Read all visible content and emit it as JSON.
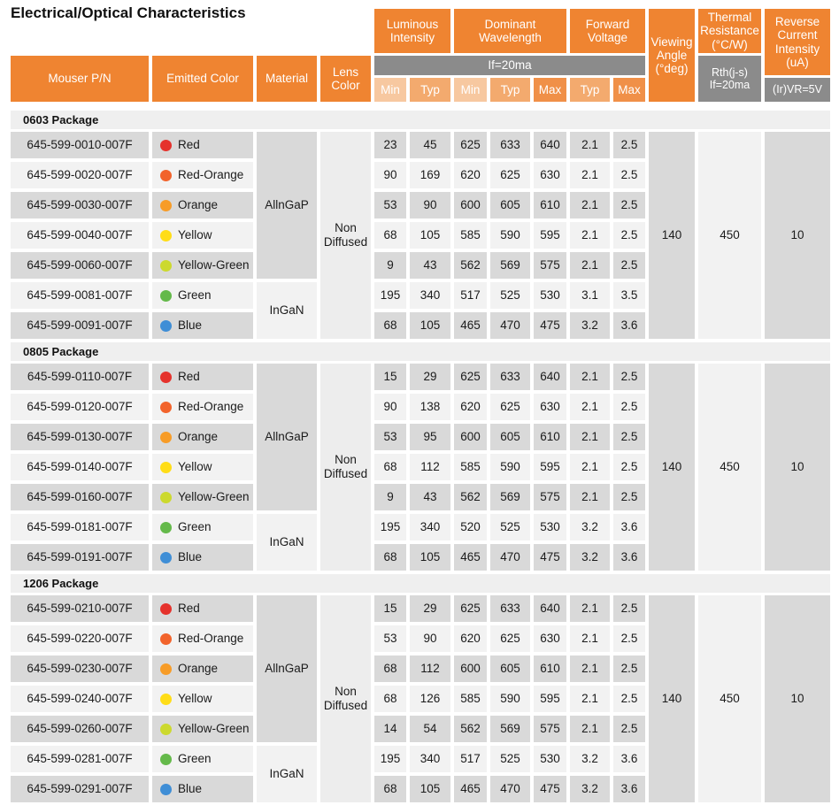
{
  "title": "Electrical/Optical Characteristics",
  "header": {
    "mouser_pn": "Mouser P/N",
    "emitted_color": "Emitted Color",
    "material": "Material",
    "lens_color": "Lens Color",
    "condition": "If=20ma",
    "groups": [
      {
        "label": "Luminous Intensity",
        "subs": [
          "Min",
          "Typ"
        ]
      },
      {
        "label": "Dominant Wavelength",
        "subs": [
          "Min",
          "Typ",
          "Max"
        ]
      },
      {
        "label": "Forward Voltage",
        "subs": [
          "Typ",
          "Max"
        ]
      }
    ],
    "viewing_angle": "Viewing Angle (°deg)",
    "thermal_resistance": "Thermal Resistance (°C/W)",
    "thermal_condition": "Rth(j-s)\nIf=20ma",
    "reverse_current": "Reverse Current Intensity (uA)",
    "reverse_condition": "(Ir)VR=5V"
  },
  "colors": {
    "header_orange": "#EF8431",
    "sub_min": "#F7C8A0",
    "sub_typ": "#F3AA6E",
    "sub_max": "#F09048",
    "condition_gray": "#8B8B8B",
    "row_dark": "#D9D9D9",
    "row_light": "#F2F2F2",
    "section_band": "#EFEFEF"
  },
  "swatch_colors": {
    "Red": "#E5322C",
    "Red-Orange": "#F2632B",
    "Orange": "#F79C27",
    "Yellow": "#FFDD17",
    "Yellow-Green": "#CCD92E",
    "Green": "#64B94A",
    "Blue": "#3F8ED6"
  },
  "sections": [
    {
      "name": "0603 Package",
      "materials": [
        {
          "label": "AllnGaP",
          "row_span": 5
        },
        {
          "label": "InGaN",
          "row_span": 2
        }
      ],
      "lens": "Non Diffused",
      "viewing_angle": "140",
      "thermal_resistance": "450",
      "reverse_current": "10",
      "rows": [
        {
          "pn": "645-599-0010-007F",
          "color": "Red",
          "values": [
            "23",
            "45",
            "625",
            "633",
            "640",
            "2.1",
            "2.5"
          ]
        },
        {
          "pn": "645-599-0020-007F",
          "color": "Red-Orange",
          "values": [
            "90",
            "169",
            "620",
            "625",
            "630",
            "2.1",
            "2.5"
          ]
        },
        {
          "pn": "645-599-0030-007F",
          "color": "Orange",
          "values": [
            "53",
            "90",
            "600",
            "605",
            "610",
            "2.1",
            "2.5"
          ]
        },
        {
          "pn": "645-599-0040-007F",
          "color": "Yellow",
          "values": [
            "68",
            "105",
            "585",
            "590",
            "595",
            "2.1",
            "2.5"
          ]
        },
        {
          "pn": "645-599-0060-007F",
          "color": "Yellow-Green",
          "values": [
            "9",
            "43",
            "562",
            "569",
            "575",
            "2.1",
            "2.5"
          ]
        },
        {
          "pn": "645-599-0081-007F",
          "color": "Green",
          "values": [
            "195",
            "340",
            "517",
            "525",
            "530",
            "3.1",
            "3.5"
          ]
        },
        {
          "pn": "645-599-0091-007F",
          "color": "Blue",
          "values": [
            "68",
            "105",
            "465",
            "470",
            "475",
            "3.2",
            "3.6"
          ]
        }
      ]
    },
    {
      "name": "0805 Package",
      "materials": [
        {
          "label": "AllnGaP",
          "row_span": 5
        },
        {
          "label": "InGaN",
          "row_span": 2
        }
      ],
      "lens": "Non Diffused",
      "viewing_angle": "140",
      "thermal_resistance": "450",
      "reverse_current": "10",
      "rows": [
        {
          "pn": "645-599-0110-007F",
          "color": "Red",
          "values": [
            "15",
            "29",
            "625",
            "633",
            "640",
            "2.1",
            "2.5"
          ]
        },
        {
          "pn": "645-599-0120-007F",
          "color": "Red-Orange",
          "values": [
            "90",
            "138",
            "620",
            "625",
            "630",
            "2.1",
            "2.5"
          ]
        },
        {
          "pn": "645-599-0130-007F",
          "color": "Orange",
          "values": [
            "53",
            "95",
            "600",
            "605",
            "610",
            "2.1",
            "2.5"
          ]
        },
        {
          "pn": "645-599-0140-007F",
          "color": "Yellow",
          "values": [
            "68",
            "112",
            "585",
            "590",
            "595",
            "2.1",
            "2.5"
          ]
        },
        {
          "pn": "645-599-0160-007F",
          "color": "Yellow-Green",
          "values": [
            "9",
            "43",
            "562",
            "569",
            "575",
            "2.1",
            "2.5"
          ]
        },
        {
          "pn": "645-599-0181-007F",
          "color": "Green",
          "values": [
            "195",
            "340",
            "520",
            "525",
            "530",
            "3.2",
            "3.6"
          ]
        },
        {
          "pn": "645-599-0191-007F",
          "color": "Blue",
          "values": [
            "68",
            "105",
            "465",
            "470",
            "475",
            "3.2",
            "3.6"
          ]
        }
      ]
    },
    {
      "name": "1206 Package",
      "materials": [
        {
          "label": "AllnGaP",
          "row_span": 5
        },
        {
          "label": "InGaN",
          "row_span": 2
        }
      ],
      "lens": "Non Diffused",
      "viewing_angle": "140",
      "thermal_resistance": "450",
      "reverse_current": "10",
      "rows": [
        {
          "pn": "645-599-0210-007F",
          "color": "Red",
          "values": [
            "15",
            "29",
            "625",
            "633",
            "640",
            "2.1",
            "2.5"
          ]
        },
        {
          "pn": "645-599-0220-007F",
          "color": "Red-Orange",
          "values": [
            "53",
            "90",
            "620",
            "625",
            "630",
            "2.1",
            "2.5"
          ]
        },
        {
          "pn": "645-599-0230-007F",
          "color": "Orange",
          "values": [
            "68",
            "112",
            "600",
            "605",
            "610",
            "2.1",
            "2.5"
          ]
        },
        {
          "pn": "645-599-0240-007F",
          "color": "Yellow",
          "values": [
            "68",
            "126",
            "585",
            "590",
            "595",
            "2.1",
            "2.5"
          ]
        },
        {
          "pn": "645-599-0260-007F",
          "color": "Yellow-Green",
          "values": [
            "14",
            "54",
            "562",
            "569",
            "575",
            "2.1",
            "2.5"
          ]
        },
        {
          "pn": "645-599-0281-007F",
          "color": "Green",
          "values": [
            "195",
            "340",
            "517",
            "525",
            "530",
            "3.2",
            "3.6"
          ]
        },
        {
          "pn": "645-599-0291-007F",
          "color": "Blue",
          "values": [
            "68",
            "105",
            "465",
            "470",
            "475",
            "3.2",
            "3.6"
          ]
        }
      ]
    }
  ]
}
